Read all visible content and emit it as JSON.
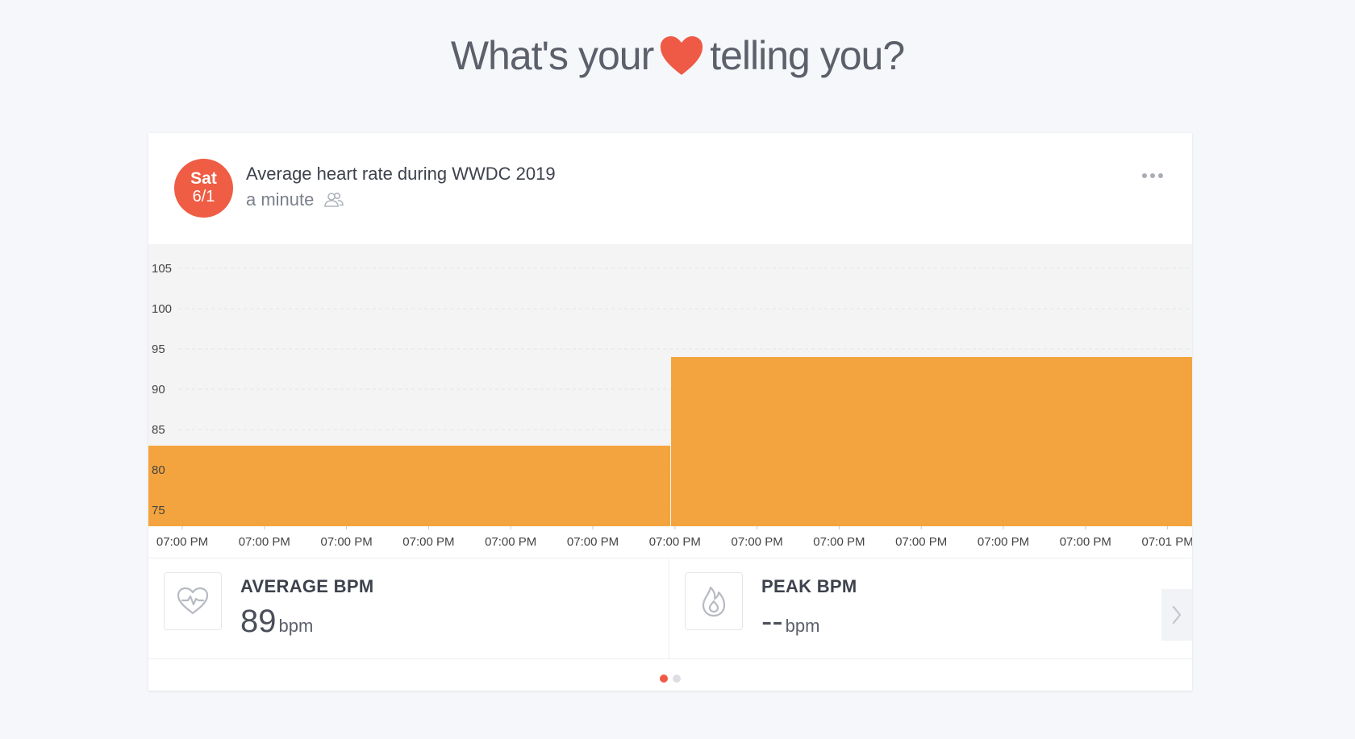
{
  "headline": {
    "before": "What's your",
    "after": "telling you?",
    "heart_icon": "heart-icon",
    "heart_color": "#ee5a45"
  },
  "card": {
    "date": {
      "dow": "Sat",
      "dm": "6/1",
      "color": "#ee5d44"
    },
    "title": "Average heart rate during WWDC 2019",
    "subtitle": "a minute",
    "subtitle_icon": "people-icon",
    "menu_icon": "more-dots-icon"
  },
  "chart_data": {
    "type": "area",
    "title": "",
    "xlabel": "",
    "ylabel": "",
    "ylim": [
      73,
      108
    ],
    "y_ticks": [
      75,
      80,
      85,
      90,
      95,
      100,
      105
    ],
    "x_ticks": [
      "07:00 PM",
      "07:00 PM",
      "07:00 PM",
      "07:00 PM",
      "07:00 PM",
      "07:00 PM",
      "07:00 PM",
      "07:00 PM",
      "07:00 PM",
      "07:00 PM",
      "07:00 PM",
      "07:00 PM",
      "07:01 PM"
    ],
    "grid": true,
    "step": true,
    "color": "#f4a43e",
    "background": "#f4f4f4",
    "series": [
      {
        "values": [
          83,
          94
        ]
      }
    ]
  },
  "stats": [
    {
      "label": "AVERAGE BPM",
      "value": "89",
      "unit": "bpm",
      "icon": "heartbeat-icon"
    },
    {
      "label": "PEAK BPM",
      "value": "--",
      "unit": "bpm",
      "icon": "flame-icon"
    }
  ],
  "pager": {
    "pages": 2,
    "active": 0,
    "active_color": "#ee5a45",
    "inactive_color": "#dcdee3"
  }
}
